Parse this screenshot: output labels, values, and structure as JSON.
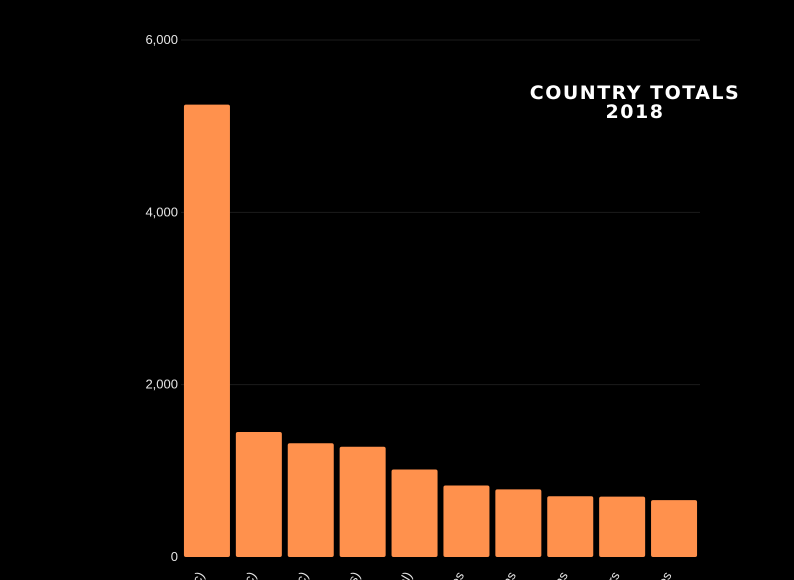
{
  "chart_data": {
    "type": "bar",
    "title_lines": [
      "COUNTRY TOTALS",
      "2018"
    ],
    "categories": [
      "tic)",
      "rtic)",
      "stic)",
      "ss)",
      "ntal)",
      "ces",
      "ons",
      "ans",
      "ers",
      "ces"
    ],
    "values": [
      5250,
      1450,
      1320,
      1280,
      1015,
      830,
      785,
      705,
      700,
      660
    ],
    "ylim": [
      0,
      6000
    ],
    "yticks": [
      0,
      2000,
      4000,
      6000
    ],
    "ytick_labels": [
      "0",
      "2,000",
      "4,000",
      "6,000"
    ],
    "grid": true,
    "bar_color": "#ff914d",
    "background": "#000000",
    "text_color": "#e6e6e6"
  }
}
